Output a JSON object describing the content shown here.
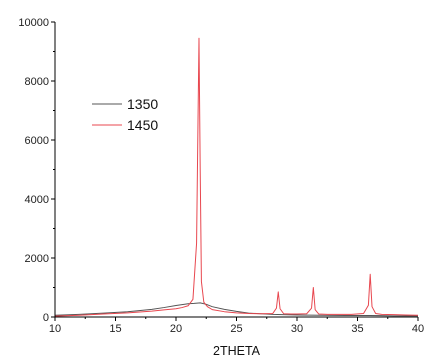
{
  "chart_data": {
    "type": "line",
    "title": "",
    "xlabel": "2THETA",
    "ylabel": "",
    "xlim": [
      10,
      40
    ],
    "ylim": [
      0,
      10000
    ],
    "xticks": [
      10,
      15,
      20,
      25,
      30,
      35,
      40
    ],
    "yticks": [
      0,
      2000,
      4000,
      6000,
      8000,
      10000
    ],
    "grid": false,
    "legend": "upper-left",
    "series": [
      {
        "name": "1350",
        "color": "#555555",
        "x": [
          10,
          12,
          14,
          16,
          18,
          19,
          20,
          20.5,
          21,
          21.5,
          22,
          22.5,
          23,
          24,
          25,
          26,
          28,
          30,
          32,
          34,
          36,
          38,
          40
        ],
        "y": [
          60,
          90,
          130,
          180,
          260,
          320,
          390,
          420,
          450,
          460,
          480,
          430,
          350,
          260,
          190,
          130,
          90,
          70,
          60,
          50,
          50,
          40,
          40
        ]
      },
      {
        "name": "1450",
        "color": "#e8474f",
        "x": [
          10,
          12,
          14,
          16,
          18,
          19,
          20,
          20.5,
          21,
          21.4,
          21.7,
          21.8,
          21.9,
          22.0,
          22.1,
          22.3,
          22.6,
          23,
          24,
          25,
          26,
          27,
          28,
          28.3,
          28.45,
          28.6,
          28.9,
          29.5,
          30,
          30.8,
          31.2,
          31.35,
          31.5,
          31.8,
          32.5,
          33.5,
          34.5,
          35.5,
          35.9,
          36.05,
          36.2,
          36.5,
          37,
          38,
          39,
          40
        ],
        "y": [
          30,
          60,
          100,
          140,
          200,
          240,
          280,
          320,
          380,
          600,
          2500,
          6000,
          9450,
          5000,
          1200,
          500,
          350,
          250,
          180,
          140,
          120,
          110,
          120,
          300,
          850,
          280,
          110,
          100,
          100,
          110,
          300,
          1000,
          250,
          100,
          90,
          90,
          90,
          120,
          400,
          1450,
          350,
          120,
          90,
          80,
          70,
          60
        ]
      }
    ]
  }
}
